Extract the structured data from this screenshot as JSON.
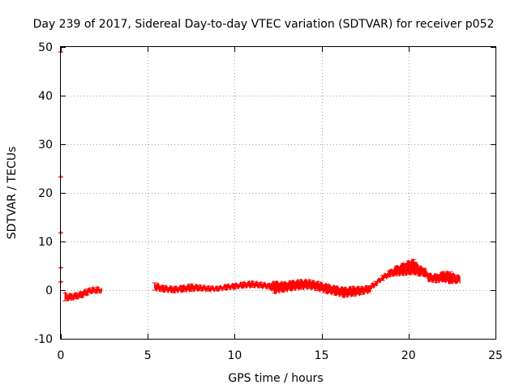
{
  "chart_data": {
    "type": "scatter",
    "title": "Day 239 of 2017, Sidereal Day-to-day VTEC variation (SDTVAR) for receiver p052",
    "xlabel": "GPS time / hours",
    "ylabel": "SDTVAR / TECUs",
    "xlim": [
      0,
      25
    ],
    "ylim": [
      -10,
      50
    ],
    "xticks": [
      0,
      5,
      10,
      15,
      20,
      25
    ],
    "yticks": [
      -10,
      0,
      10,
      20,
      30,
      40,
      50
    ],
    "grid": true,
    "series_color": "#ff0000",
    "series": [
      {
        "name": "SDTVAR",
        "band": [
          [
            0.25,
            -2.2,
            -0.6
          ],
          [
            0.6,
            -2.0,
            -0.8
          ],
          [
            0.9,
            -1.8,
            -0.6
          ],
          [
            1.2,
            -1.5,
            -0.3
          ],
          [
            1.5,
            -1.0,
            0.2
          ],
          [
            1.8,
            -0.5,
            0.5
          ],
          [
            2.1,
            -0.6,
            0.6
          ],
          [
            2.35,
            -0.5,
            0.4
          ],
          [
            5.4,
            0.0,
            1.5
          ],
          [
            5.9,
            -0.3,
            0.9
          ],
          [
            6.5,
            -0.5,
            0.7
          ],
          [
            7.0,
            -0.3,
            0.9
          ],
          [
            7.5,
            -0.2,
            1.2
          ],
          [
            8.0,
            -0.1,
            1.0
          ],
          [
            8.5,
            -0.2,
            0.8
          ],
          [
            9.0,
            -0.1,
            0.7
          ],
          [
            9.5,
            0.1,
            1.1
          ],
          [
            10.0,
            0.3,
            1.3
          ],
          [
            10.5,
            0.5,
            1.6
          ],
          [
            11.0,
            0.6,
            1.8
          ],
          [
            11.5,
            0.5,
            1.6
          ],
          [
            12.0,
            0.3,
            1.3
          ],
          [
            12.3,
            -0.6,
            1.8
          ],
          [
            12.8,
            -0.3,
            1.6
          ],
          [
            13.3,
            0.0,
            1.9
          ],
          [
            13.8,
            0.2,
            2.1
          ],
          [
            14.3,
            0.3,
            2.1
          ],
          [
            14.8,
            -0.1,
            1.7
          ],
          [
            15.3,
            -0.6,
            1.2
          ],
          [
            15.8,
            -1.0,
            0.8
          ],
          [
            16.3,
            -1.4,
            0.5
          ],
          [
            16.8,
            -1.2,
            0.7
          ],
          [
            17.3,
            -0.9,
            0.7
          ],
          [
            17.7,
            -0.5,
            0.9
          ],
          [
            18.1,
            0.9,
            1.8
          ],
          [
            18.5,
            2.0,
            3.0
          ],
          [
            18.9,
            2.8,
            4.0
          ],
          [
            19.3,
            3.0,
            4.9
          ],
          [
            19.7,
            3.1,
            5.5
          ],
          [
            20.0,
            3.2,
            6.0
          ],
          [
            20.3,
            3.3,
            6.3
          ],
          [
            20.6,
            3.0,
            5.0
          ],
          [
            20.9,
            2.9,
            4.5
          ],
          [
            21.2,
            1.8,
            3.4
          ],
          [
            21.6,
            1.6,
            3.2
          ],
          [
            22.0,
            1.8,
            3.8
          ],
          [
            22.4,
            1.4,
            3.8
          ],
          [
            22.7,
            1.5,
            3.1
          ],
          [
            22.95,
            1.5,
            3.0
          ]
        ],
        "edge_points": [
          [
            0.0,
            49.0
          ],
          [
            0.0,
            23.3
          ],
          [
            0.0,
            11.8
          ],
          [
            0.0,
            4.6
          ],
          [
            0.0,
            1.7
          ]
        ]
      }
    ]
  }
}
